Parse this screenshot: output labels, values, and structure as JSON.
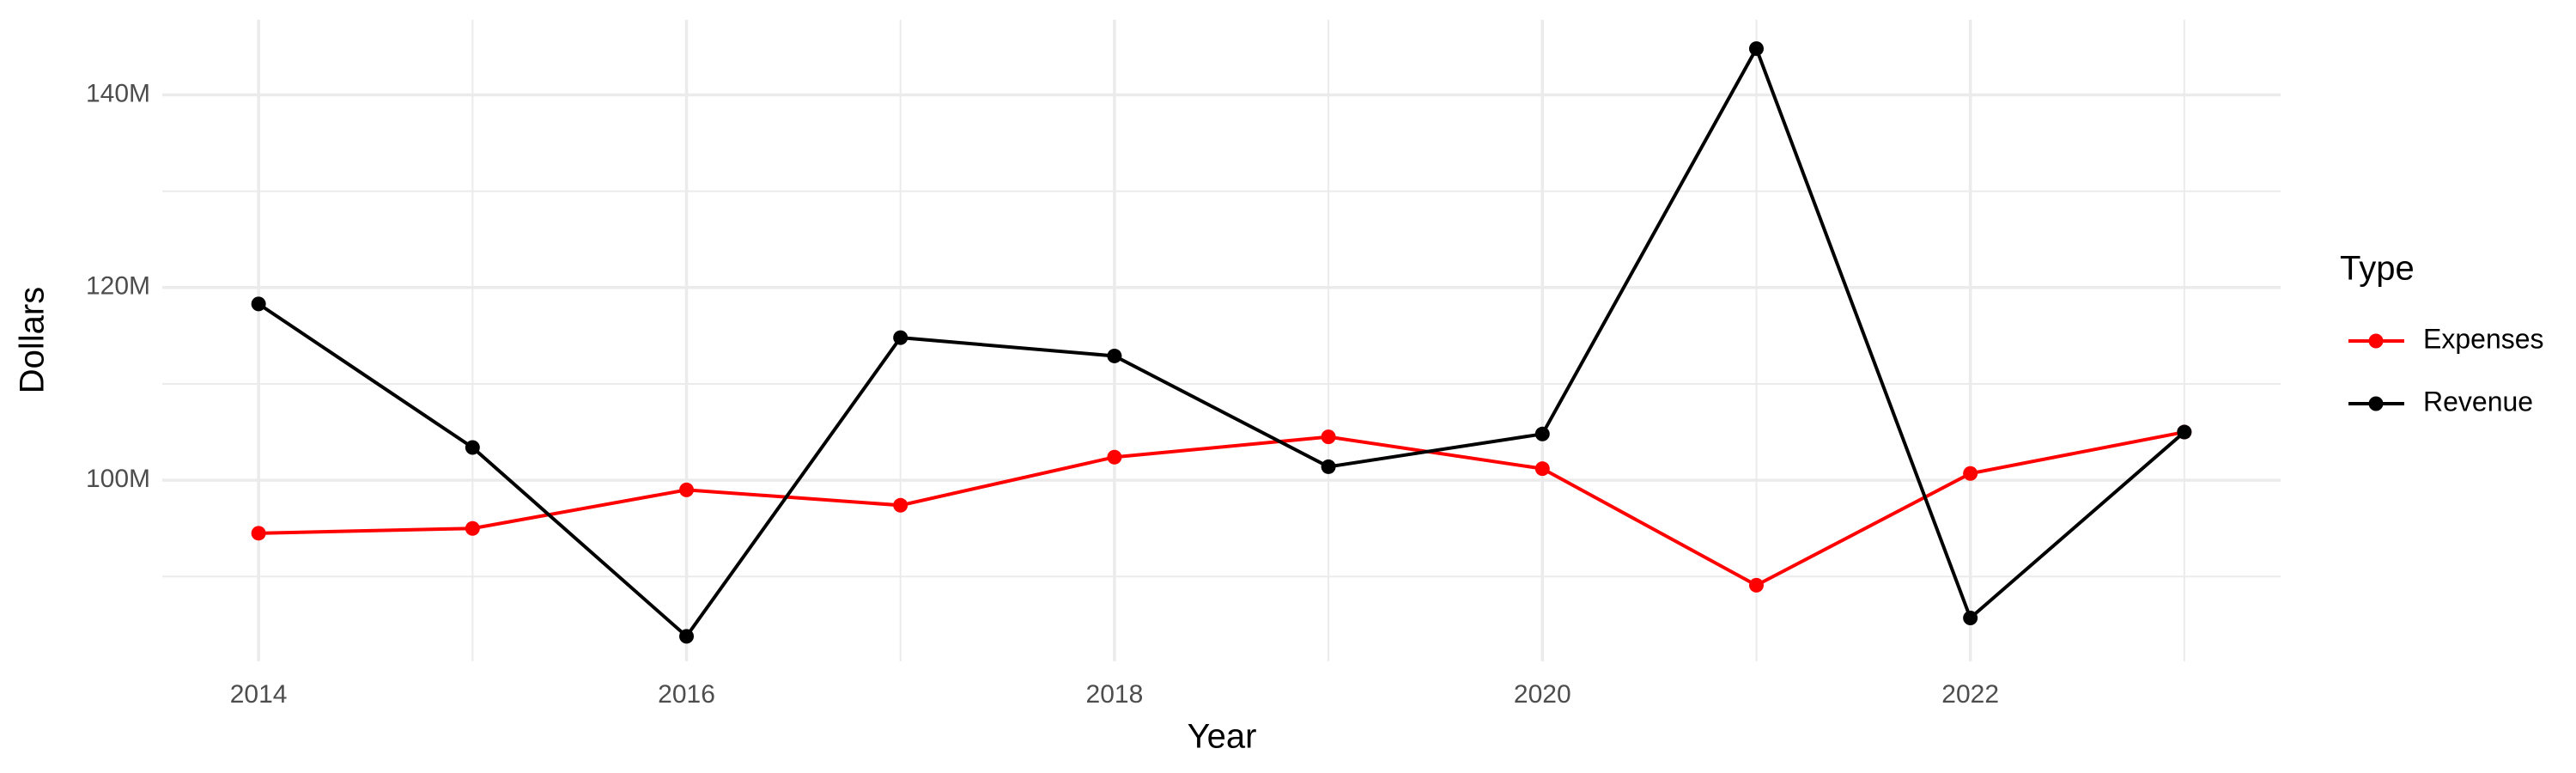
{
  "chart_data": {
    "type": "line",
    "x_label": "Year",
    "y_label": "Dollars",
    "x": [
      2014,
      2015,
      2016,
      2017,
      2018,
      2019,
      2020,
      2021,
      2022,
      2023
    ],
    "series": [
      {
        "name": "Expenses",
        "color": "#ff0000",
        "values": [
          94500000,
          95000000,
          99000000,
          97400000,
          102400000,
          104500000,
          101200000,
          89100000,
          100700000,
          105000000
        ]
      },
      {
        "name": "Revenue",
        "color": "#000000",
        "values": [
          118300000,
          103400000,
          83800000,
          114800000,
          112900000,
          101400000,
          104800000,
          144800000,
          85700000,
          105000000
        ]
      }
    ],
    "xlim": [
      2013.55,
      2023.45
    ],
    "xticks": [
      2014,
      2016,
      2018,
      2020,
      2022
    ],
    "ylim": [
      81200000,
      147800000
    ],
    "yticks": [
      {
        "value": 100000000,
        "label": "100M"
      },
      {
        "value": 120000000,
        "label": "120M"
      },
      {
        "value": 140000000,
        "label": "140M"
      }
    ],
    "grid": true,
    "legend_title": "Type",
    "legend_position": "right"
  }
}
